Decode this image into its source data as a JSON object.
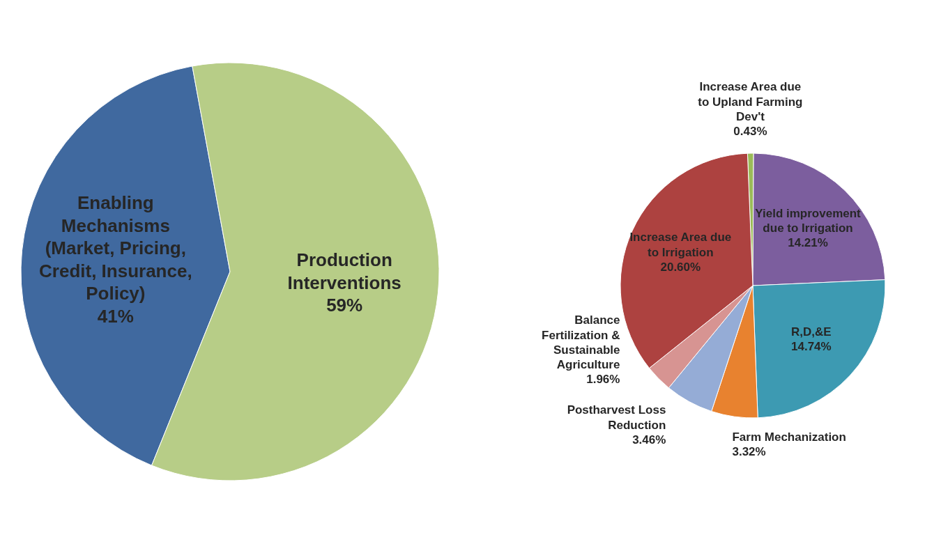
{
  "chart_data": [
    {
      "type": "pie",
      "categories": [
        "Enabling Mechanisms (Market, Pricing, Credit, Insurance, Policy)",
        "Production Interventions"
      ],
      "values": [
        41,
        59
      ],
      "colors": [
        "#40699f",
        "#b7cd87"
      ],
      "value_labels": [
        "41%",
        "59%"
      ]
    },
    {
      "type": "pie",
      "categories": [
        "Increase Area due to Upland Farming Dev't",
        "Yield improvement due to Irrigation",
        "R,D,&E",
        "Farm Mechanization",
        "Postharvest Loss Reduction",
        "Balance Fertilization & Sustainable Agriculture",
        "Increase Area due to Irrigation"
      ],
      "values": [
        0.43,
        14.21,
        14.74,
        3.32,
        3.46,
        1.96,
        20.6
      ],
      "colors": [
        "#9bbb59",
        "#7c5e9e",
        "#3d9ab2",
        "#e8822f",
        "#95acd6",
        "#d79492",
        "#ad4240"
      ],
      "value_labels": [
        "0.43%",
        "14.21%",
        "14.74%",
        "3.32%",
        "3.46%",
        "1.96%",
        "20.60%"
      ]
    }
  ]
}
